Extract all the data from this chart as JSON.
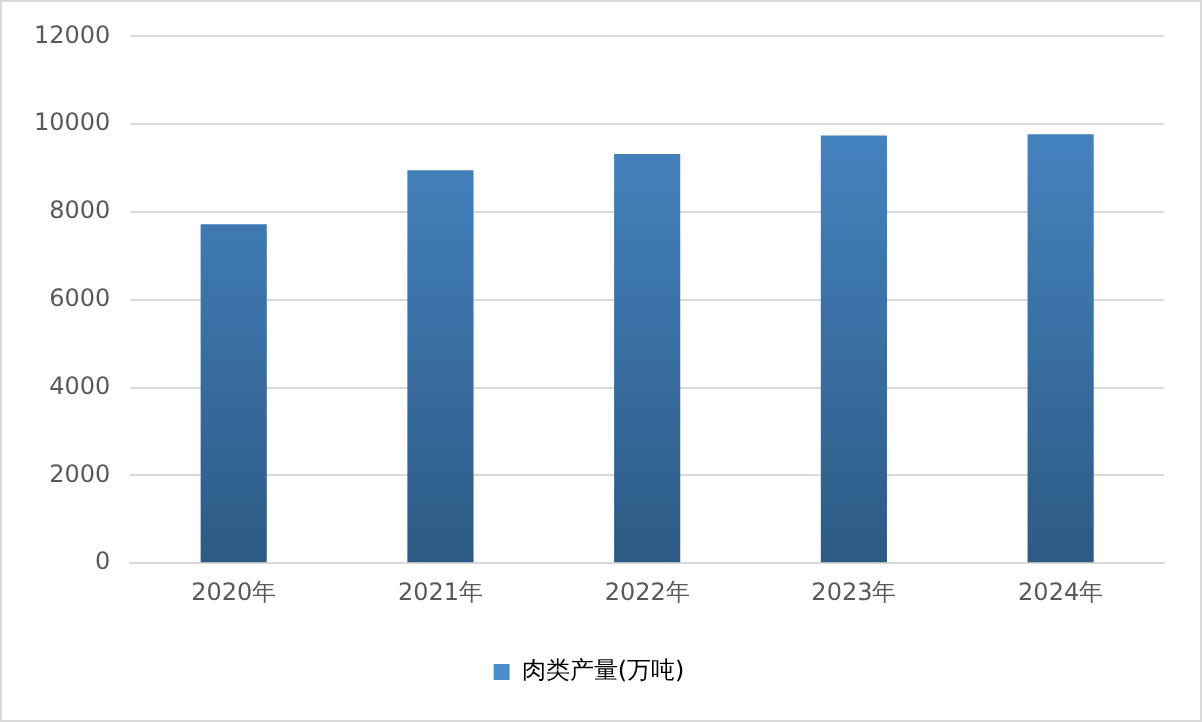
{
  "chart_data": {
    "type": "bar",
    "categories": [
      "2020年",
      "2021年",
      "2022年",
      "2023年",
      "2024年"
    ],
    "series": [
      {
        "name": "肉类产量(万吨)",
        "color": "#4a8ccc",
        "values": [
          7720,
          8950,
          9320,
          9740,
          9770
        ]
      }
    ],
    "ylim": [
      0,
      12000
    ],
    "yticks": [
      0,
      2000,
      4000,
      6000,
      8000,
      10000,
      12000
    ],
    "grid": "y",
    "legend": "bottom"
  }
}
